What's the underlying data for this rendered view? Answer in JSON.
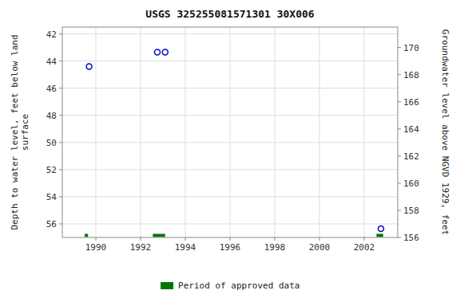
{
  "chart_data": {
    "type": "scatter",
    "title": "USGS 325255081571301 30X006",
    "xlim": [
      1988.5,
      2003.5
    ],
    "xticks": [
      1990,
      1992,
      1994,
      1996,
      1998,
      2000,
      2002
    ],
    "ylim": [
      57.0,
      41.5
    ],
    "yticks": [
      42,
      44,
      46,
      48,
      50,
      52,
      54,
      56
    ],
    "y2lim": [
      156,
      171.5
    ],
    "y2ticks": [
      156,
      158,
      160,
      162,
      164,
      166,
      168,
      170
    ],
    "ylabel": "Depth to water level, feet below land\n surface",
    "y2label": "Groundwater level above NGVD 1929, feet",
    "grid": true,
    "legend": "bottom",
    "series": [
      {
        "type": "scatter",
        "marker": "open-circle",
        "color": "#0000cc",
        "x": [
          1989.7,
          1992.75,
          1993.1,
          2002.75
        ],
        "values": [
          44.4,
          43.35,
          43.35,
          56.35
        ]
      },
      {
        "name": "Period of approved data",
        "type": "range",
        "color": "#007700",
        "x_start": [
          1989.5,
          1992.55,
          2002.55
        ],
        "x_end": [
          1989.65,
          1993.1,
          2002.85
        ],
        "values": [
          56.85,
          56.85,
          56.85
        ]
      }
    ]
  }
}
